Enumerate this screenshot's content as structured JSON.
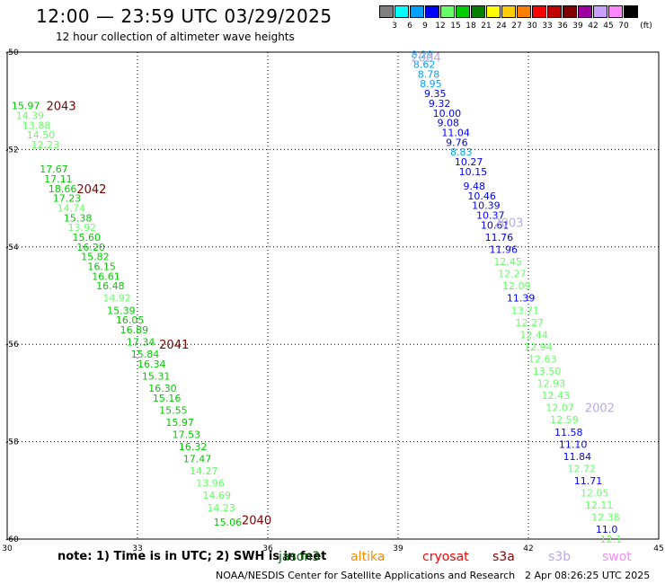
{
  "header": {
    "title": "12:00 — 23:59 UTC 03/29/2025",
    "subtitle": "12 hour collection of altimeter wave heights"
  },
  "colorbar": {
    "labels": [
      "3",
      "6",
      "9",
      "12",
      "15",
      "18",
      "21",
      "24",
      "27",
      "30",
      "33",
      "36",
      "39",
      "42",
      "45",
      "70"
    ],
    "unit": "(ft)",
    "colors": [
      "#808080",
      "#00ffff",
      "#00a0ff",
      "#0000ff",
      "#66ff66",
      "#00cc00",
      "#008000",
      "#ffff00",
      "#ffcc00",
      "#ff8000",
      "#ff0000",
      "#c00000",
      "#800000",
      "#a000a0",
      "#c8a0ff",
      "#ff88ff",
      "#000000"
    ]
  },
  "footer": {
    "note": "note:  1) Time is in UTC;  2) SWH is in feet",
    "source": "NOAA/NESDIS Center for Satellite Applications and Research",
    "timestamp": "2 Apr 08:26:25 UTC 2025"
  },
  "satellites": [
    {
      "name": "jason3",
      "color": "#006400"
    },
    {
      "name": "altika",
      "color": "#ff8c00"
    },
    {
      "name": "cryosat",
      "color": "#ff0000"
    },
    {
      "name": "s3a",
      "color": "#8b0000"
    },
    {
      "name": "s3b",
      "color": "#b8a8e8"
    },
    {
      "name": "swot",
      "color": "#ff88ff"
    }
  ],
  "chart_data": {
    "type": "scatter",
    "title": "12:00 — 23:59 UTC 03/29/2025",
    "xlabel": "",
    "ylabel": "",
    "xlim": [
      30,
      45
    ],
    "ylim": [
      -60,
      -50
    ],
    "x_ticks": [
      30,
      33,
      36,
      39,
      42,
      45
    ],
    "y_ticks": [
      -50,
      -52,
      -54,
      -56,
      -58,
      -60
    ],
    "grid": true,
    "time_labels": [
      {
        "label": "2043",
        "x": 30.9,
        "y": -51.1,
        "color": "#800000"
      },
      {
        "label": "2042",
        "x": 31.6,
        "y": -52.8,
        "color": "#800000"
      },
      {
        "label": "2041",
        "x": 33.5,
        "y": -56.0,
        "color": "#800000"
      },
      {
        "label": "2040",
        "x": 35.4,
        "y": -59.6,
        "color": "#800000"
      },
      {
        "label": "2004",
        "x": 39.3,
        "y": -50.1,
        "color": "#b8a8e8"
      },
      {
        "label": "2003",
        "x": 41.2,
        "y": -53.5,
        "color": "#b8a8e8"
      },
      {
        "label": "2002",
        "x": 43.3,
        "y": -57.3,
        "color": "#b8a8e8"
      }
    ],
    "series": [
      {
        "values": [
          {
            "x": 30.1,
            "y": -51.1,
            "v": "15.97",
            "c": "#00cc00"
          },
          {
            "x": 30.2,
            "y": -51.3,
            "v": "14.39",
            "c": "#66ff66"
          },
          {
            "x": 30.35,
            "y": -51.5,
            "v": "13.88",
            "c": "#66ff66"
          },
          {
            "x": 30.45,
            "y": -51.7,
            "v": "14.50",
            "c": "#66ff66"
          },
          {
            "x": 30.55,
            "y": -51.9,
            "v": "12.23",
            "c": "#66ff66"
          },
          {
            "x": 30.75,
            "y": -52.4,
            "v": "17.67",
            "c": "#00cc00"
          },
          {
            "x": 30.85,
            "y": -52.6,
            "v": "17.11",
            "c": "#00cc00"
          },
          {
            "x": 30.95,
            "y": -52.8,
            "v": "18.66",
            "c": "#00cc00"
          },
          {
            "x": 31.05,
            "y": -53.0,
            "v": "17.23",
            "c": "#00cc00"
          },
          {
            "x": 31.15,
            "y": -53.2,
            "v": "14.74",
            "c": "#66ff66"
          },
          {
            "x": 31.3,
            "y": -53.4,
            "v": "15.38",
            "c": "#00cc00"
          },
          {
            "x": 31.4,
            "y": -53.6,
            "v": "13.92",
            "c": "#66ff66"
          },
          {
            "x": 31.5,
            "y": -53.8,
            "v": "15.60",
            "c": "#00cc00"
          },
          {
            "x": 31.6,
            "y": -54.0,
            "v": "16.20",
            "c": "#00cc00"
          },
          {
            "x": 31.7,
            "y": -54.2,
            "v": "15.82",
            "c": "#00cc00"
          },
          {
            "x": 31.85,
            "y": -54.4,
            "v": "16.15",
            "c": "#00cc00"
          },
          {
            "x": 31.95,
            "y": -54.6,
            "v": "16.61",
            "c": "#00cc00"
          },
          {
            "x": 32.05,
            "y": -54.8,
            "v": "16.48",
            "c": "#00cc00"
          },
          {
            "x": 32.2,
            "y": -55.05,
            "v": "14.92",
            "c": "#66ff66"
          },
          {
            "x": 32.3,
            "y": -55.3,
            "v": "15.39",
            "c": "#00cc00"
          },
          {
            "x": 32.5,
            "y": -55.5,
            "v": "16.05",
            "c": "#00cc00"
          },
          {
            "x": 32.6,
            "y": -55.7,
            "v": "16.89",
            "c": "#00cc00"
          },
          {
            "x": 32.75,
            "y": -55.95,
            "v": "17.34",
            "c": "#00cc00"
          },
          {
            "x": 32.85,
            "y": -56.2,
            "v": "15.84",
            "c": "#00cc00"
          },
          {
            "x": 33.0,
            "y": -56.4,
            "v": "16.34",
            "c": "#00cc00"
          },
          {
            "x": 33.1,
            "y": -56.65,
            "v": "15.31",
            "c": "#00cc00"
          },
          {
            "x": 33.25,
            "y": -56.9,
            "v": "16.30",
            "c": "#00cc00"
          },
          {
            "x": 33.35,
            "y": -57.1,
            "v": "15.16",
            "c": "#00cc00"
          },
          {
            "x": 33.5,
            "y": -57.35,
            "v": "15.55",
            "c": "#00cc00"
          },
          {
            "x": 33.65,
            "y": -57.6,
            "v": "15.97",
            "c": "#00cc00"
          },
          {
            "x": 33.8,
            "y": -57.85,
            "v": "17.53",
            "c": "#00cc00"
          },
          {
            "x": 33.95,
            "y": -58.1,
            "v": "16.32",
            "c": "#00cc00"
          },
          {
            "x": 34.05,
            "y": -58.35,
            "v": "17.47",
            "c": "#00cc00"
          },
          {
            "x": 34.2,
            "y": -58.6,
            "v": "14.27",
            "c": "#66ff66"
          },
          {
            "x": 34.35,
            "y": -58.85,
            "v": "13.96",
            "c": "#66ff66"
          },
          {
            "x": 34.5,
            "y": -59.1,
            "v": "14.69",
            "c": "#66ff66"
          },
          {
            "x": 34.6,
            "y": -59.35,
            "v": "14.23",
            "c": "#66ff66"
          },
          {
            "x": 34.75,
            "y": -59.65,
            "v": "15.06",
            "c": "#00cc00"
          },
          {
            "x": 39.3,
            "y": -50.05,
            "v": "8.29",
            "c": "#00a0ff"
          },
          {
            "x": 39.35,
            "y": -50.25,
            "v": "8.62",
            "c": "#00a0ff"
          },
          {
            "x": 39.45,
            "y": -50.45,
            "v": "8.78",
            "c": "#00a0ff"
          },
          {
            "x": 39.5,
            "y": -50.65,
            "v": "8.95",
            "c": "#00a0ff"
          },
          {
            "x": 39.6,
            "y": -50.85,
            "v": "9.35",
            "c": "#0000ff"
          },
          {
            "x": 39.7,
            "y": -51.05,
            "v": "9.32",
            "c": "#0000ff"
          },
          {
            "x": 39.8,
            "y": -51.25,
            "v": "10.00",
            "c": "#0000ff"
          },
          {
            "x": 39.9,
            "y": -51.45,
            "v": "9.08",
            "c": "#0000ff"
          },
          {
            "x": 40.0,
            "y": -51.65,
            "v": "11.04",
            "c": "#0000ff"
          },
          {
            "x": 40.1,
            "y": -51.85,
            "v": "9.76",
            "c": "#0000ff"
          },
          {
            "x": 40.2,
            "y": -52.05,
            "v": "8.83",
            "c": "#00a0ff"
          },
          {
            "x": 40.3,
            "y": -52.25,
            "v": "10.27",
            "c": "#0000ff"
          },
          {
            "x": 40.4,
            "y": -52.45,
            "v": "10.15",
            "c": "#0000ff"
          },
          {
            "x": 40.5,
            "y": -52.75,
            "v": "9.48",
            "c": "#0000ff"
          },
          {
            "x": 40.6,
            "y": -52.95,
            "v": "10.46",
            "c": "#0000ff"
          },
          {
            "x": 40.7,
            "y": -53.15,
            "v": "10.39",
            "c": "#0000ff"
          },
          {
            "x": 40.8,
            "y": -53.35,
            "v": "10.37",
            "c": "#0000ff"
          },
          {
            "x": 40.9,
            "y": -53.55,
            "v": "10.61",
            "c": "#0000ff"
          },
          {
            "x": 41.0,
            "y": -53.8,
            "v": "11.76",
            "c": "#0000ff"
          },
          {
            "x": 41.1,
            "y": -54.05,
            "v": "11.96",
            "c": "#0000ff"
          },
          {
            "x": 41.2,
            "y": -54.3,
            "v": "12.45",
            "c": "#66ff66"
          },
          {
            "x": 41.3,
            "y": -54.55,
            "v": "12.27",
            "c": "#66ff66"
          },
          {
            "x": 41.4,
            "y": -54.8,
            "v": "12.09",
            "c": "#66ff66"
          },
          {
            "x": 41.5,
            "y": -55.05,
            "v": "11.39",
            "c": "#0000ff"
          },
          {
            "x": 41.6,
            "y": -55.3,
            "v": "13.71",
            "c": "#66ff66"
          },
          {
            "x": 41.7,
            "y": -55.55,
            "v": "12.27",
            "c": "#66ff66"
          },
          {
            "x": 41.8,
            "y": -55.8,
            "v": "12.44",
            "c": "#66ff66"
          },
          {
            "x": 41.9,
            "y": -56.05,
            "v": "12.94",
            "c": "#66ff66"
          },
          {
            "x": 42.0,
            "y": -56.3,
            "v": "12.63",
            "c": "#66ff66"
          },
          {
            "x": 42.1,
            "y": -56.55,
            "v": "13.50",
            "c": "#66ff66"
          },
          {
            "x": 42.2,
            "y": -56.8,
            "v": "12.93",
            "c": "#66ff66"
          },
          {
            "x": 42.3,
            "y": -57.05,
            "v": "12.43",
            "c": "#66ff66"
          },
          {
            "x": 42.4,
            "y": -57.3,
            "v": "12.07",
            "c": "#66ff66"
          },
          {
            "x": 42.5,
            "y": -57.55,
            "v": "12.59",
            "c": "#66ff66"
          },
          {
            "x": 42.6,
            "y": -57.8,
            "v": "11.58",
            "c": "#0000ff"
          },
          {
            "x": 42.7,
            "y": -58.05,
            "v": "11.10",
            "c": "#0000ff"
          },
          {
            "x": 42.8,
            "y": -58.3,
            "v": "11.84",
            "c": "#0000ff"
          },
          {
            "x": 42.9,
            "y": -58.55,
            "v": "12.72",
            "c": "#66ff66"
          },
          {
            "x": 43.05,
            "y": -58.8,
            "v": "11.71",
            "c": "#0000ff"
          },
          {
            "x": 43.2,
            "y": -59.05,
            "v": "12.05",
            "c": "#66ff66"
          },
          {
            "x": 43.3,
            "y": -59.3,
            "v": "12.11",
            "c": "#66ff66"
          },
          {
            "x": 43.45,
            "y": -59.55,
            "v": "12.38",
            "c": "#66ff66"
          },
          {
            "x": 43.55,
            "y": -59.8,
            "v": "11.0",
            "c": "#0000ff"
          },
          {
            "x": 43.65,
            "y": -60.0,
            "v": "12.1",
            "c": "#66ff66"
          }
        ]
      }
    ]
  }
}
